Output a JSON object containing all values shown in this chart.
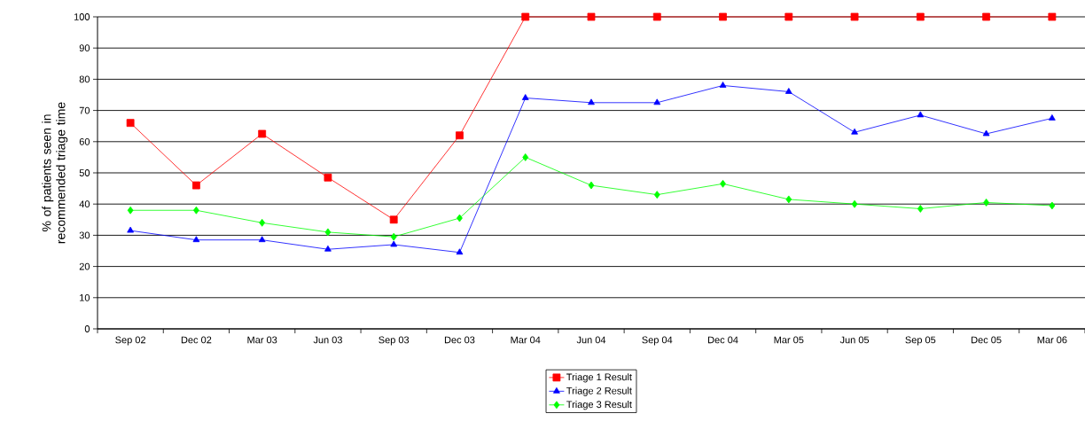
{
  "chart_data": {
    "type": "line",
    "ylabel": "% of patients seen in recommended triage time",
    "categories": [
      "Sep 02",
      "Dec 02",
      "Mar 03",
      "Jun 03",
      "Sep 03",
      "Dec 03",
      "Mar 04",
      "Jun 04",
      "Sep 04",
      "Dec 04",
      "Mar 05",
      "Jun 05",
      "Sep 05",
      "Dec 05",
      "Mar 06"
    ],
    "series": [
      {
        "name": "Triage 1 Result",
        "color": "#ff0000",
        "marker": "square",
        "values": [
          66,
          46,
          62.5,
          48.5,
          35,
          62,
          100,
          100,
          100,
          100,
          100,
          100,
          100,
          100,
          100
        ]
      },
      {
        "name": "Triage 2 Result",
        "color": "#0000ff",
        "marker": "triangle",
        "values": [
          31.5,
          28.5,
          28.5,
          25.5,
          27,
          24.5,
          74,
          72.5,
          72.5,
          78,
          76,
          63,
          68.5,
          62.5,
          67.5
        ]
      },
      {
        "name": "Triage 3 Result",
        "color": "#00ff00",
        "marker": "diamond",
        "values": [
          38,
          38,
          34,
          31,
          29.5,
          35.5,
          55,
          46,
          43,
          46.5,
          41.5,
          40,
          38.5,
          40.5,
          39.5
        ]
      }
    ],
    "ylim": [
      0,
      100
    ],
    "yticks": [
      0,
      10,
      20,
      30,
      40,
      50,
      60,
      70,
      80,
      90,
      100
    ],
    "grid": "y",
    "legend": "bottom",
    "line_style": "solid"
  }
}
